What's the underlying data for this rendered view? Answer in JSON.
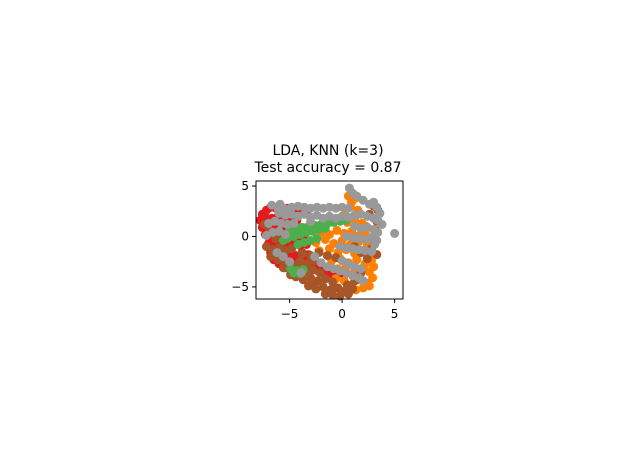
{
  "chart_data": {
    "type": "scatter",
    "title": "LDA, KNN (k=3)",
    "subtitle": "Test accuracy = 0.87",
    "xlabel": "",
    "ylabel": "",
    "xlim": [
      -8.2,
      5.8
    ],
    "ylim": [
      -6.2,
      5.5
    ],
    "xticks": [
      -5,
      0,
      5
    ],
    "yticks": [
      -5,
      0,
      5
    ],
    "xtick_labels": [
      "−5",
      "0",
      "5"
    ],
    "ytick_labels": [
      "−5",
      "0",
      "5"
    ],
    "grid": false,
    "legend": "none",
    "series": [
      {
        "color": "#e41a1c",
        "points": [
          [
            -7.6,
            2.2
          ],
          [
            -7.2,
            2.6
          ],
          [
            -6.8,
            2.9
          ],
          [
            -6.3,
            2.8
          ],
          [
            -5.8,
            2.9
          ],
          [
            -5.2,
            2.8
          ],
          [
            -4.6,
            2.6
          ],
          [
            -4.0,
            2.5
          ],
          [
            -3.4,
            2.3
          ],
          [
            -7.8,
            1.6
          ],
          [
            -7.3,
            1.9
          ],
          [
            -6.7,
            1.8
          ],
          [
            -6.1,
            2.0
          ],
          [
            -5.5,
            1.7
          ],
          [
            -4.9,
            1.9
          ],
          [
            -4.3,
            1.6
          ],
          [
            -7.6,
            0.9
          ],
          [
            -7.0,
            1.1
          ],
          [
            -6.4,
            0.8
          ],
          [
            -5.8,
            1.0
          ],
          [
            -5.2,
            0.7
          ],
          [
            -4.6,
            0.9
          ],
          [
            -4.0,
            0.6
          ],
          [
            -7.3,
            0.2
          ],
          [
            -6.6,
            0.0
          ],
          [
            -6.0,
            0.3
          ],
          [
            -5.4,
            -0.1
          ],
          [
            -4.8,
            0.2
          ],
          [
            -4.2,
            0.0
          ],
          [
            -3.6,
            -0.2
          ],
          [
            -7.0,
            -0.7
          ],
          [
            -6.4,
            -0.9
          ],
          [
            -5.8,
            -0.6
          ],
          [
            -5.2,
            -0.8
          ],
          [
            -4.6,
            -0.6
          ],
          [
            -4.0,
            -0.9
          ],
          [
            -3.4,
            -0.8
          ],
          [
            -6.8,
            -1.6
          ],
          [
            -6.2,
            -1.8
          ],
          [
            -5.6,
            -1.5
          ],
          [
            -5.0,
            -1.7
          ],
          [
            -4.4,
            -1.9
          ],
          [
            -3.8,
            -1.6
          ],
          [
            -3.2,
            -1.8
          ],
          [
            -6.5,
            -2.3
          ],
          [
            -5.9,
            -2.1
          ],
          [
            -5.3,
            -2.4
          ],
          [
            -4.7,
            -2.2
          ],
          [
            -4.1,
            -2.5
          ],
          [
            -3.5,
            -2.3
          ],
          [
            -2.9,
            -2.6
          ],
          [
            -5.5,
            -3.1
          ],
          [
            -4.9,
            -2.9
          ],
          [
            -4.3,
            -3.0
          ],
          [
            -3.5,
            -3.2
          ],
          [
            -2.7,
            -3.0
          ],
          [
            -1.9,
            -2.9
          ],
          [
            -1.3,
            -3.3
          ],
          [
            -1.0,
            -3.7
          ],
          [
            -0.4,
            -3.5
          ],
          [
            0.2,
            -3.8
          ],
          [
            -0.6,
            -4.0
          ],
          [
            -1.6,
            -3.6
          ],
          [
            -2.3,
            -3.4
          ],
          [
            -6.0,
            -2.7
          ]
        ]
      },
      {
        "color": "#ff7f00",
        "points": [
          [
            0.6,
            4.0
          ],
          [
            0.9,
            3.4
          ],
          [
            1.3,
            3.8
          ],
          [
            0.3,
            2.7
          ],
          [
            0.8,
            2.9
          ],
          [
            1.5,
            2.6
          ],
          [
            -0.8,
            1.5
          ],
          [
            -0.2,
            1.8
          ],
          [
            0.5,
            1.4
          ],
          [
            1.2,
            1.7
          ],
          [
            1.9,
            1.3
          ],
          [
            2.3,
            1.0
          ],
          [
            -2.0,
            0.4
          ],
          [
            -1.2,
            0.2
          ],
          [
            -0.5,
            0.6
          ],
          [
            0.2,
            0.3
          ],
          [
            0.9,
            0.5
          ],
          [
            1.6,
            0.1
          ],
          [
            2.2,
            0.4
          ],
          [
            -2.5,
            -0.6
          ],
          [
            -1.6,
            -0.3
          ],
          [
            -0.8,
            -0.7
          ],
          [
            0.0,
            -0.4
          ],
          [
            0.8,
            -0.8
          ],
          [
            1.6,
            -0.5
          ],
          [
            2.4,
            -0.9
          ],
          [
            -2.2,
            -1.4
          ],
          [
            -1.2,
            -1.2
          ],
          [
            -0.4,
            -1.6
          ],
          [
            0.4,
            -1.3
          ],
          [
            1.2,
            -1.7
          ],
          [
            2.0,
            -1.4
          ],
          [
            2.6,
            -1.8
          ],
          [
            -1.0,
            -2.4
          ],
          [
            -0.2,
            -2.2
          ],
          [
            0.6,
            -2.6
          ],
          [
            1.4,
            -2.3
          ],
          [
            2.2,
            -2.7
          ],
          [
            2.8,
            -2.4
          ],
          [
            -0.4,
            -3.2
          ],
          [
            0.4,
            -3.0
          ],
          [
            1.2,
            -3.4
          ],
          [
            2.0,
            -3.1
          ],
          [
            2.6,
            -3.5
          ],
          [
            -0.6,
            -4.2
          ],
          [
            0.2,
            -4.4
          ],
          [
            0.9,
            -4.8
          ],
          [
            1.6,
            -4.3
          ],
          [
            2.3,
            -4.6
          ],
          [
            -0.8,
            -5.2
          ],
          [
            -0.1,
            -5.4
          ],
          [
            0.6,
            -5.6
          ],
          [
            1.3,
            -5.3
          ],
          [
            2.0,
            -5.1
          ],
          [
            2.6,
            -4.9
          ],
          [
            2.9,
            -4.1
          ],
          [
            3.0,
            -3.0
          ]
        ]
      },
      {
        "color": "#a65628",
        "points": [
          [
            -7.2,
            -1.0
          ],
          [
            -6.6,
            -1.3
          ],
          [
            -6.0,
            -1.1
          ],
          [
            -5.4,
            -1.4
          ],
          [
            -4.8,
            -1.2
          ],
          [
            -6.8,
            -2.0
          ],
          [
            -6.1,
            -2.3
          ],
          [
            -5.4,
            -2.6
          ],
          [
            -4.7,
            -2.8
          ],
          [
            -4.0,
            -2.5
          ],
          [
            -3.3,
            -2.7
          ],
          [
            -2.6,
            -2.4
          ],
          [
            -5.6,
            -3.1
          ],
          [
            -4.9,
            -3.4
          ],
          [
            -4.2,
            -3.2
          ],
          [
            -3.5,
            -3.5
          ],
          [
            -2.8,
            -3.3
          ],
          [
            -2.1,
            -3.6
          ],
          [
            -4.4,
            -4.0
          ],
          [
            -3.7,
            -4.3
          ],
          [
            -3.0,
            -4.1
          ],
          [
            -2.3,
            -4.4
          ],
          [
            -1.6,
            -4.2
          ],
          [
            -0.9,
            -4.5
          ],
          [
            -3.2,
            -4.9
          ],
          [
            -2.5,
            -5.2
          ],
          [
            -1.8,
            -5.0
          ],
          [
            -1.1,
            -5.3
          ],
          [
            -0.4,
            -5.1
          ],
          [
            0.3,
            -5.4
          ],
          [
            1.0,
            -5.2
          ],
          [
            -1.6,
            -5.7
          ],
          [
            -0.9,
            -5.8
          ],
          [
            -0.2,
            -5.9
          ],
          [
            0.6,
            -5.7
          ],
          [
            -3.8,
            -1.7
          ],
          [
            -3.0,
            -1.9
          ],
          [
            -2.2,
            -1.6
          ],
          [
            -1.4,
            -1.9
          ],
          [
            -0.6,
            -2.1
          ],
          [
            -7.4,
            1.2
          ],
          [
            -6.9,
            0.6
          ],
          [
            -6.3,
            -0.2
          ],
          [
            -2.8,
            -4.7
          ],
          [
            -4.9,
            -3.8
          ],
          [
            1.2,
            -1.0
          ],
          [
            1.8,
            -1.6
          ],
          [
            2.4,
            -2.2
          ],
          [
            2.8,
            -1.2
          ],
          [
            3.0,
            -0.3
          ],
          [
            3.2,
            0.6
          ],
          [
            3.3,
            1.5
          ],
          [
            3.4,
            2.6
          ],
          [
            3.0,
            3.0
          ],
          [
            2.6,
            2.2
          ],
          [
            3.3,
            -1.8
          ],
          [
            1.8,
            -3.6
          ],
          [
            1.2,
            -4.4
          ],
          [
            0.5,
            -4.8
          ]
        ]
      },
      {
        "color": "#4daf4a",
        "points": [
          [
            -5.0,
            0.6
          ],
          [
            -4.4,
            0.8
          ],
          [
            -3.8,
            0.9
          ],
          [
            -3.2,
            1.0
          ],
          [
            -2.6,
            1.1
          ],
          [
            -2.0,
            1.2
          ],
          [
            -1.4,
            1.3
          ],
          [
            -0.8,
            1.4
          ],
          [
            -0.2,
            1.5
          ],
          [
            0.4,
            1.6
          ],
          [
            -5.2,
            -0.2
          ],
          [
            -4.6,
            0.0
          ],
          [
            -4.0,
            0.2
          ],
          [
            -3.4,
            0.4
          ],
          [
            -2.8,
            0.5
          ],
          [
            -2.2,
            0.7
          ],
          [
            -1.6,
            0.8
          ],
          [
            -3.6,
            -0.6
          ],
          [
            -3.0,
            -0.4
          ],
          [
            -2.4,
            -0.2
          ],
          [
            -4.2,
            -0.8
          ],
          [
            -5.6,
            -0.4
          ],
          [
            -4.9,
            -3.2
          ],
          [
            -4.3,
            -3.4
          ],
          [
            -3.7,
            -3.3
          ],
          [
            -4.6,
            -3.6
          ],
          [
            -4.0,
            -3.7
          ]
        ]
      },
      {
        "color": "#999999",
        "points": [
          [
            0.7,
            4.8
          ],
          [
            1.0,
            4.3
          ],
          [
            1.4,
            4.0
          ],
          [
            2.0,
            3.6
          ],
          [
            2.6,
            3.2
          ],
          [
            3.0,
            3.4
          ],
          [
            3.3,
            2.9
          ],
          [
            -5.4,
            2.7
          ],
          [
            -4.8,
            2.9
          ],
          [
            -4.2,
            3.0
          ],
          [
            -3.6,
            2.9
          ],
          [
            -3.0,
            2.8
          ],
          [
            -2.4,
            2.9
          ],
          [
            -1.8,
            2.8
          ],
          [
            -1.2,
            2.9
          ],
          [
            -0.6,
            2.8
          ],
          [
            0.0,
            2.9
          ],
          [
            0.6,
            2.8
          ],
          [
            -6.0,
            2.3
          ],
          [
            -5.4,
            2.1
          ],
          [
            -4.8,
            2.2
          ],
          [
            -4.2,
            2.0
          ],
          [
            -3.6,
            2.2
          ],
          [
            -3.0,
            1.9
          ],
          [
            -2.4,
            2.1
          ],
          [
            -1.8,
            1.8
          ],
          [
            -1.2,
            2.0
          ],
          [
            -0.6,
            1.8
          ],
          [
            0.0,
            2.0
          ],
          [
            0.6,
            1.9
          ],
          [
            1.2,
            2.1
          ],
          [
            1.8,
            2.2
          ],
          [
            2.4,
            2.0
          ],
          [
            3.0,
            1.8
          ],
          [
            3.4,
            1.6
          ],
          [
            -7.0,
            1.3
          ],
          [
            -6.4,
            1.5
          ],
          [
            -5.8,
            1.3
          ],
          [
            -5.2,
            1.2
          ],
          [
            -4.6,
            1.3
          ],
          [
            -3.0,
            1.5
          ],
          [
            1.2,
            1.0
          ],
          [
            1.8,
            0.8
          ],
          [
            2.4,
            0.9
          ],
          [
            3.0,
            0.7
          ],
          [
            3.4,
            0.4
          ],
          [
            -7.2,
            0.1
          ],
          [
            -6.6,
            0.4
          ],
          [
            -6.0,
            0.5
          ],
          [
            -5.4,
            0.2
          ],
          [
            0.4,
            0.0
          ],
          [
            1.0,
            -0.1
          ],
          [
            1.6,
            -0.2
          ],
          [
            2.2,
            -0.3
          ],
          [
            2.8,
            -0.1
          ],
          [
            3.3,
            -0.4
          ],
          [
            -0.2,
            -1.0
          ],
          [
            0.4,
            -1.1
          ],
          [
            1.0,
            -1.2
          ],
          [
            1.6,
            -1.3
          ],
          [
            2.2,
            -1.4
          ],
          [
            2.8,
            -1.5
          ],
          [
            3.1,
            -0.8
          ],
          [
            -1.4,
            -3.0
          ],
          [
            -0.8,
            -3.2
          ],
          [
            -0.2,
            -3.4
          ],
          [
            0.4,
            -3.6
          ],
          [
            1.0,
            -3.9
          ],
          [
            1.6,
            -4.1
          ],
          [
            2.0,
            -4.4
          ],
          [
            -2.0,
            -2.6
          ],
          [
            -2.6,
            -2.0
          ],
          [
            0.0,
            -2.4
          ],
          [
            0.6,
            -2.7
          ],
          [
            1.2,
            -3.0
          ],
          [
            1.8,
            -3.2
          ],
          [
            -5.0,
            -2.5
          ],
          [
            -5.6,
            -2.0
          ],
          [
            -6.2,
            -1.6
          ],
          [
            -3.9,
            -3.6
          ],
          [
            -6.7,
            3.1
          ],
          [
            -6.1,
            2.7
          ],
          [
            -5.9,
            3.2
          ],
          [
            3.6,
            2.3
          ],
          [
            3.8,
            1.2
          ],
          [
            5.0,
            0.3
          ]
        ]
      }
    ]
  }
}
